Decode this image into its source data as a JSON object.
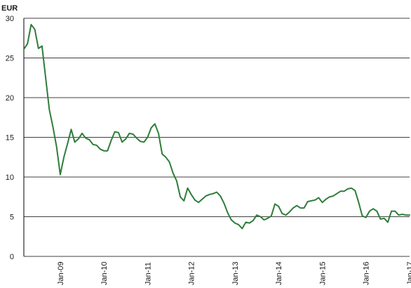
{
  "chart_data": {
    "type": "line",
    "title": "",
    "xlabel": "",
    "ylabel": "EUR",
    "ylim": [
      0,
      30
    ],
    "yticks": [
      0,
      5,
      10,
      15,
      20,
      25,
      30
    ],
    "xlim": [
      "2008-03",
      "2017-01"
    ],
    "xticks": [
      "Jan-09",
      "Jan-10",
      "Jan-11",
      "Jan-12",
      "Jan-13",
      "Jan-14",
      "Jan-15",
      "Jan-16",
      "Jan-17"
    ],
    "grid": true,
    "legend": "none",
    "colors": {
      "line": "#2e7d3a",
      "grid": "#000000"
    },
    "series": [
      {
        "x": [
          "2008-03",
          "2008-04",
          "2008-05",
          "2008-06",
          "2008-07",
          "2008-08",
          "2008-09",
          "2008-10",
          "2008-11",
          "2008-12",
          "2009-01",
          "2009-02",
          "2009-03",
          "2009-04",
          "2009-05",
          "2009-06",
          "2009-07",
          "2009-08",
          "2009-09",
          "2009-10",
          "2009-11",
          "2009-12",
          "2010-01",
          "2010-02",
          "2010-03",
          "2010-04",
          "2010-05",
          "2010-06",
          "2010-07",
          "2010-08",
          "2010-09",
          "2010-10",
          "2010-11",
          "2010-12",
          "2011-01",
          "2011-02",
          "2011-03",
          "2011-04",
          "2011-05",
          "2011-06",
          "2011-07",
          "2011-08",
          "2011-09",
          "2011-10",
          "2011-11",
          "2011-12",
          "2012-01",
          "2012-02",
          "2012-03",
          "2012-04",
          "2012-05",
          "2012-06",
          "2012-07",
          "2012-08",
          "2012-09",
          "2012-10",
          "2012-11",
          "2012-12",
          "2013-01",
          "2013-02",
          "2013-03",
          "2013-04",
          "2013-05",
          "2013-06",
          "2013-07",
          "2013-08",
          "2013-09",
          "2013-10",
          "2013-11",
          "2013-12",
          "2014-01",
          "2014-02",
          "2014-03",
          "2014-04",
          "2014-05",
          "2014-06",
          "2014-07",
          "2014-08",
          "2014-09",
          "2014-10",
          "2014-11",
          "2014-12",
          "2015-01",
          "2015-02",
          "2015-03",
          "2015-04",
          "2015-05",
          "2015-06",
          "2015-07",
          "2015-08",
          "2015-09",
          "2015-10",
          "2015-11",
          "2015-12",
          "2016-01",
          "2016-02",
          "2016-03",
          "2016-04",
          "2016-05",
          "2016-06",
          "2016-07",
          "2016-08",
          "2016-09",
          "2016-10",
          "2016-11",
          "2016-12",
          "2017-01"
        ],
        "y": [
          26.1,
          26.8,
          29.2,
          28.6,
          26.2,
          26.5,
          22.5,
          18.5,
          16.3,
          13.8,
          10.3,
          12.5,
          14.2,
          16.0,
          14.4,
          14.8,
          15.5,
          14.9,
          14.7,
          14.1,
          14.0,
          13.5,
          13.3,
          13.3,
          14.6,
          15.7,
          15.6,
          14.4,
          14.8,
          15.5,
          15.4,
          14.9,
          14.5,
          14.4,
          15.0,
          16.2,
          16.7,
          15.5,
          12.9,
          12.5,
          11.9,
          10.5,
          9.5,
          7.5,
          7.0,
          8.6,
          7.8,
          7.1,
          6.8,
          7.2,
          7.6,
          7.8,
          7.9,
          8.1,
          7.6,
          6.7,
          5.5,
          4.6,
          4.2,
          4.0,
          3.5,
          4.3,
          4.2,
          4.5,
          5.2,
          5.0,
          4.6,
          4.8,
          5.1,
          6.6,
          6.3,
          5.4,
          5.2,
          5.6,
          6.1,
          6.4,
          6.1,
          6.1,
          6.9,
          7.0,
          7.1,
          7.4,
          6.8,
          7.2,
          7.5,
          7.6,
          7.9,
          8.2,
          8.2,
          8.5,
          8.6,
          8.3,
          6.8,
          5.1,
          4.9,
          5.7,
          6.0,
          5.7,
          4.7,
          4.8,
          4.3,
          5.7,
          5.7,
          5.2,
          5.3,
          5.2,
          5.2
        ]
      }
    ]
  }
}
